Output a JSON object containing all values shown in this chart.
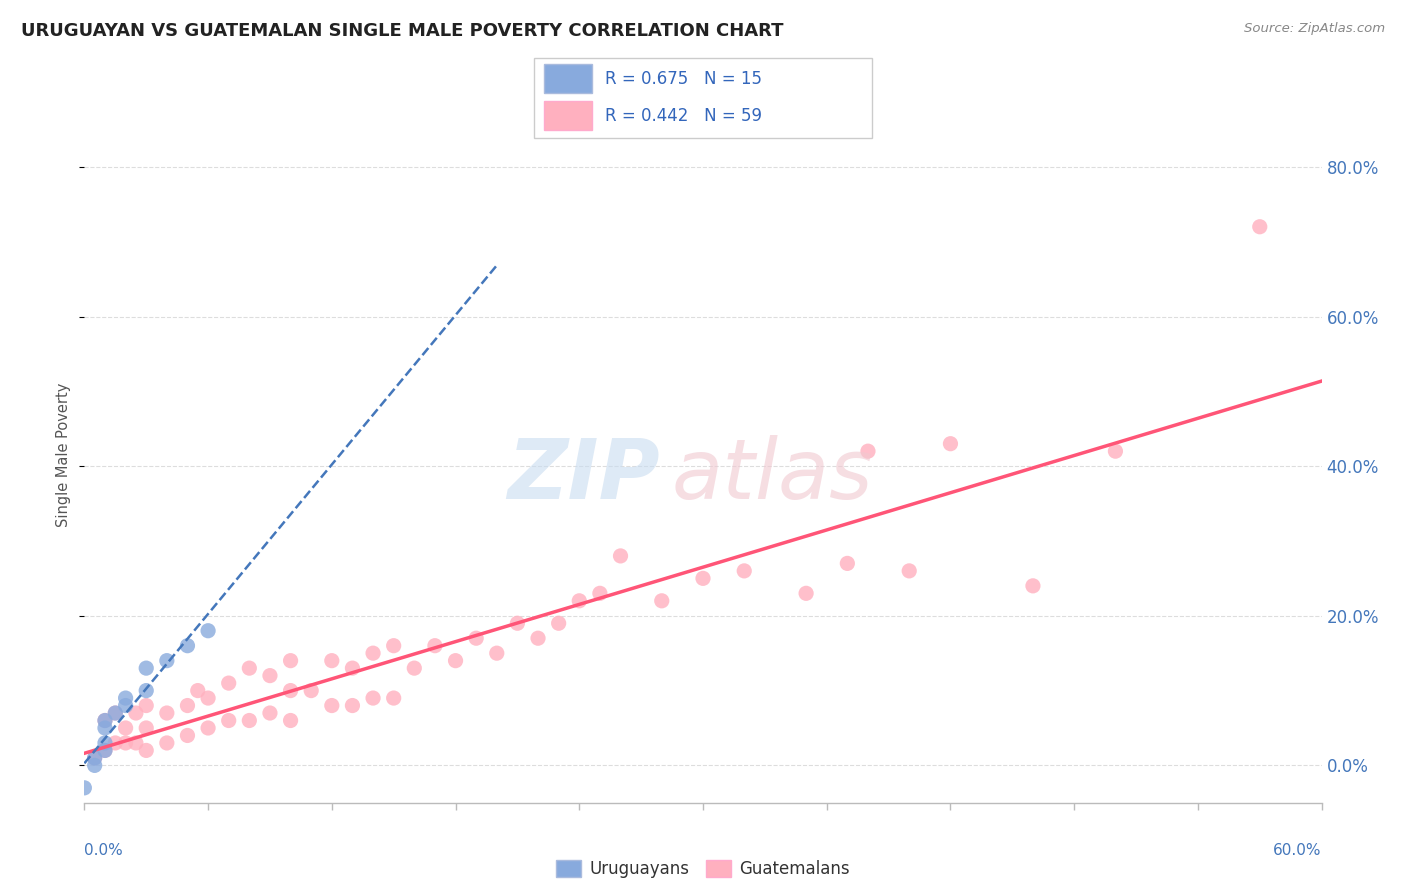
{
  "title": "URUGUAYAN VS GUATEMALAN SINGLE MALE POVERTY CORRELATION CHART",
  "source_text": "Source: ZipAtlas.com",
  "ylabel": "Single Male Poverty",
  "right_yticks": [
    "0.0%",
    "20.0%",
    "40.0%",
    "60.0%",
    "80.0%"
  ],
  "right_ytick_vals": [
    0.0,
    0.2,
    0.4,
    0.6,
    0.8
  ],
  "xmin": 0.0,
  "xmax": 0.6,
  "ymin": -0.05,
  "ymax": 0.88,
  "uruguayan_color": "#88AADD",
  "guatemalan_color": "#FFB0BF",
  "uruguayan_line_color": "#4477BB",
  "guatemalan_line_color": "#FF5577",
  "uruguayan_r": 0.675,
  "uruguayan_n": 15,
  "guatemalan_r": 0.442,
  "guatemalan_n": 59,
  "background_color": "#FFFFFF",
  "grid_color": "#DDDDDD",
  "uruguayan_scatter_x": [
    0.0,
    0.005,
    0.005,
    0.01,
    0.01,
    0.01,
    0.01,
    0.015,
    0.02,
    0.02,
    0.03,
    0.03,
    0.04,
    0.05,
    0.06
  ],
  "uruguayan_scatter_y": [
    -0.03,
    0.0,
    0.01,
    0.02,
    0.03,
    0.05,
    0.06,
    0.07,
    0.08,
    0.09,
    0.1,
    0.13,
    0.14,
    0.16,
    0.18
  ],
  "guatemalan_scatter_x": [
    0.005,
    0.01,
    0.01,
    0.015,
    0.015,
    0.02,
    0.02,
    0.025,
    0.025,
    0.03,
    0.03,
    0.03,
    0.04,
    0.04,
    0.05,
    0.05,
    0.055,
    0.06,
    0.06,
    0.07,
    0.07,
    0.08,
    0.08,
    0.09,
    0.09,
    0.1,
    0.1,
    0.1,
    0.11,
    0.12,
    0.12,
    0.13,
    0.13,
    0.14,
    0.14,
    0.15,
    0.15,
    0.16,
    0.17,
    0.18,
    0.19,
    0.2,
    0.21,
    0.22,
    0.23,
    0.24,
    0.25,
    0.26,
    0.28,
    0.3,
    0.32,
    0.35,
    0.37,
    0.38,
    0.4,
    0.42,
    0.46,
    0.5,
    0.57
  ],
  "guatemalan_scatter_y": [
    0.01,
    0.02,
    0.06,
    0.03,
    0.07,
    0.03,
    0.05,
    0.03,
    0.07,
    0.02,
    0.05,
    0.08,
    0.03,
    0.07,
    0.04,
    0.08,
    0.1,
    0.05,
    0.09,
    0.06,
    0.11,
    0.06,
    0.13,
    0.07,
    0.12,
    0.06,
    0.1,
    0.14,
    0.1,
    0.08,
    0.14,
    0.08,
    0.13,
    0.09,
    0.15,
    0.09,
    0.16,
    0.13,
    0.16,
    0.14,
    0.17,
    0.15,
    0.19,
    0.17,
    0.19,
    0.22,
    0.23,
    0.28,
    0.22,
    0.25,
    0.26,
    0.23,
    0.27,
    0.42,
    0.26,
    0.43,
    0.24,
    0.42,
    0.72
  ]
}
